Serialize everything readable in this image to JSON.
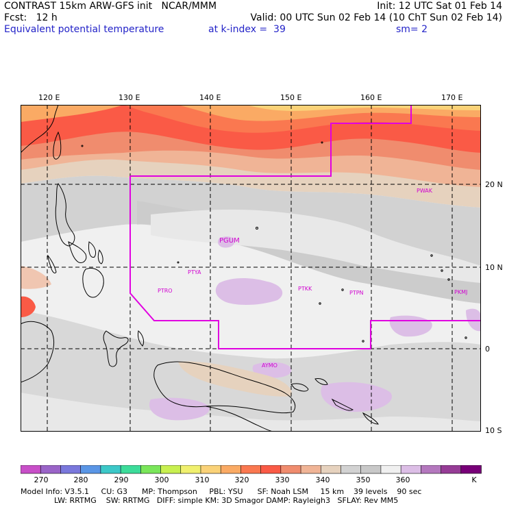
{
  "header": {
    "line1_left": "CONTRAST 15km ARW-GFS init   NCAR/MMM",
    "line1_right": "Init: 12 UTC Sat 01 Feb 14",
    "line2_left": "Fcst:   12 h",
    "line2_right": "Valid: 00 UTC Sun 02 Feb 14 (10 ChT Sun 02 Feb 14)",
    "field": "Equivalent potential temperature",
    "level": "at k-index =  39",
    "smooth": "sm= 2"
  },
  "lon_ticks": [
    "120 E",
    "130 E",
    "140 E",
    "150 E",
    "160 E",
    "170 E"
  ],
  "lat_ticks": [
    "20 N",
    "10 N",
    "0",
    "10 S"
  ],
  "stations": [
    "PWAK",
    "PGUM",
    "PTYA",
    "PTRO",
    "PTKK",
    "PTPN",
    "PKMJ",
    "AYMO"
  ],
  "colorbar": {
    "labels": [
      "270",
      "280",
      "290",
      "300",
      "310",
      "320",
      "330",
      "340",
      "350",
      "360"
    ],
    "unit": "K",
    "colors": [
      "#c84fc8",
      "#9a64c8",
      "#7a78dc",
      "#5a96e6",
      "#3cc8c8",
      "#3cdc9a",
      "#7ae65a",
      "#c8f050",
      "#f0f06e",
      "#fad278",
      "#faaa64",
      "#fa7850",
      "#fa5a46",
      "#f08c6e",
      "#f0b496",
      "#e6d2be",
      "#d2d2d2",
      "#c8c8c8",
      "#f0f0f0",
      "#dcbee6",
      "#b478be",
      "#963c96",
      "#780078"
    ]
  },
  "model_info": {
    "line1": "Model Info: V3.5.1     CU: G3      MP: Thompson     PBL: YSU      SF: Noah LSM     15 km    39 levels    90 sec",
    "line2": "              LW: RRTMG    SW: RRTMG   DIFF: simple KM: 3D Smagor DAMP: Rayleigh3   SFLAY: Rev MM5"
  }
}
